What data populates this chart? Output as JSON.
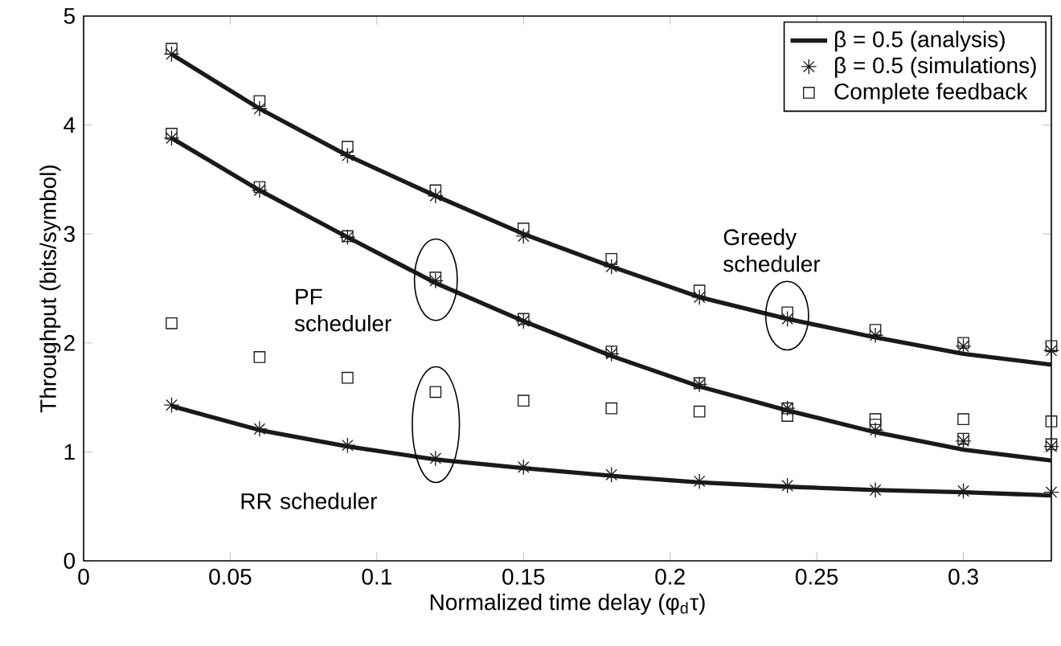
{
  "chart_data": {
    "type": "line",
    "xlabel": "Normalized time delay (φ$_{d}$τ)",
    "ylabel": "Throughput (bits/symbol)",
    "x": [
      0.03,
      0.06,
      0.09,
      0.12,
      0.15,
      0.18,
      0.21,
      0.24,
      0.27,
      0.3,
      0.33
    ],
    "xlim": [
      0,
      0.33
    ],
    "ylim": [
      0,
      5
    ],
    "xticks": [
      0,
      0.05,
      0.1,
      0.15,
      0.2,
      0.25,
      0.3
    ],
    "yticks": [
      0,
      1,
      2,
      3,
      4,
      5
    ],
    "grid": false,
    "legend": "top right",
    "series": [
      {
        "name": "β = 0.5 (analysis)",
        "marker": "none",
        "color": "#1a1a1a",
        "values": [
          4.65,
          4.15,
          3.72,
          3.35,
          3.0,
          2.7,
          2.42,
          2.22,
          2.05,
          1.9,
          1.8
        ]
      },
      {
        "marker": "none",
        "color": "#1a1a1a",
        "values": [
          3.88,
          3.4,
          2.97,
          2.55,
          2.2,
          1.88,
          1.6,
          1.38,
          1.18,
          1.02,
          0.92
        ]
      },
      {
        "marker": "none",
        "color": "#1a1a1a",
        "values": [
          1.42,
          1.2,
          1.05,
          0.93,
          0.85,
          0.78,
          0.72,
          0.68,
          0.65,
          0.63,
          0.6
        ]
      },
      {
        "name": "β = 0.5 (simulations)",
        "type": "scatter",
        "marker": "cross",
        "color": "#1a1a1a",
        "values": [
          4.65,
          4.15,
          3.72,
          3.35,
          2.98,
          2.7,
          2.42,
          2.22,
          2.07,
          1.97,
          1.93
        ]
      },
      {
        "type": "scatter",
        "marker": "cross",
        "color": "#1a1a1a",
        "values": [
          3.88,
          3.4,
          2.97,
          2.57,
          2.2,
          1.9,
          1.62,
          1.4,
          1.2,
          1.1,
          1.05
        ]
      },
      {
        "type": "scatter",
        "marker": "cross",
        "color": "#1a1a1a",
        "values": [
          1.43,
          1.21,
          1.06,
          0.94,
          0.86,
          0.79,
          0.73,
          0.69,
          0.65,
          0.64,
          0.63
        ]
      },
      {
        "name": "Complete feedback",
        "type": "scatter",
        "marker": "square",
        "color": "#1a1a1a",
        "values": [
          4.7,
          4.22,
          3.8,
          3.4,
          3.05,
          2.77,
          2.48,
          2.28,
          2.12,
          2.0,
          1.97
        ]
      },
      {
        "type": "scatter",
        "marker": "square",
        "color": "#1a1a1a",
        "values": [
          3.92,
          3.43,
          2.98,
          2.6,
          2.22,
          1.92,
          1.63,
          1.4,
          1.25,
          1.12,
          1.07
        ]
      },
      {
        "type": "scatter",
        "marker": "square",
        "color": "#1a1a1a",
        "values": [
          2.18,
          1.87,
          1.68,
          1.55,
          1.47,
          1.4,
          1.37,
          1.33,
          1.3,
          1.3,
          1.28
        ]
      }
    ],
    "annotations": [
      "Greedy scheduler",
      "PF scheduler",
      "RR scheduler"
    ]
  }
}
